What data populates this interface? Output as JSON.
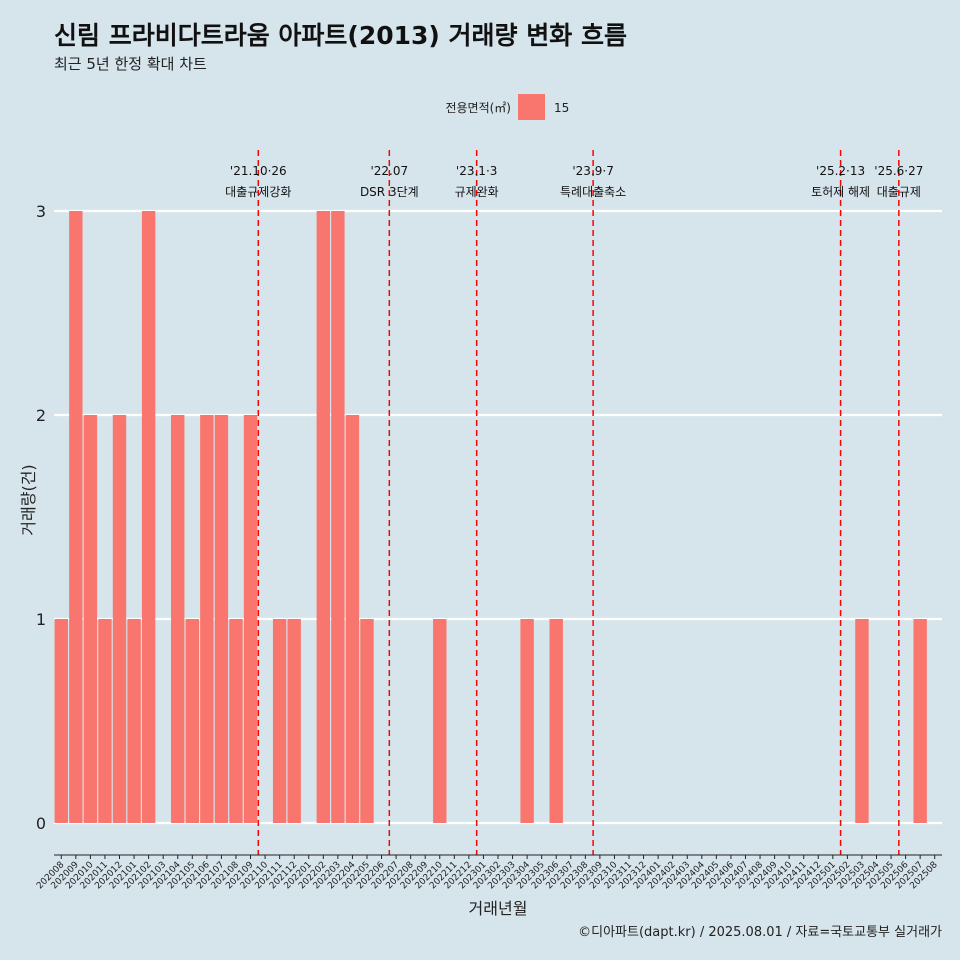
{
  "chart_data": {
    "type": "bar",
    "title": "신림 프라비다트라움 아파트(2013) 거래량 변화 흐름",
    "subtitle": "최근 5년 한정 확대 차트",
    "xlabel": "거래년월",
    "ylabel": "거래량(건)",
    "ylim": [
      0,
      3
    ],
    "y_ticks": [
      "0",
      "1",
      "2",
      "3"
    ],
    "legend": {
      "title": "전용면적(㎡)",
      "items": [
        {
          "name": "15",
          "color": "#f8766d"
        }
      ],
      "position": "top"
    },
    "categories": [
      "202008",
      "202009",
      "202010",
      "202011",
      "202012",
      "202101",
      "202102",
      "202103",
      "202104",
      "202105",
      "202106",
      "202107",
      "202108",
      "202109",
      "202110",
      "202111",
      "202112",
      "202201",
      "202202",
      "202203",
      "202204",
      "202205",
      "202206",
      "202207",
      "202208",
      "202209",
      "202210",
      "202211",
      "202212",
      "202301",
      "202302",
      "202303",
      "202304",
      "202305",
      "202306",
      "202307",
      "202308",
      "202309",
      "202310",
      "202311",
      "202312",
      "202401",
      "202402",
      "202403",
      "202404",
      "202405",
      "202406",
      "202407",
      "202408",
      "202409",
      "202410",
      "202411",
      "202412",
      "202501",
      "202502",
      "202503",
      "202504",
      "202505",
      "202506",
      "202507",
      "202508"
    ],
    "series": [
      {
        "name": "15",
        "color": "#f8766d",
        "values": [
          1,
          3,
          2,
          1,
          2,
          1,
          3,
          0,
          2,
          1,
          2,
          2,
          1,
          2,
          0,
          1,
          1,
          0,
          3,
          3,
          2,
          1,
          0,
          0,
          0,
          0,
          1,
          0,
          0,
          0,
          0,
          0,
          1,
          0,
          1,
          0,
          0,
          0,
          0,
          0,
          0,
          0,
          0,
          0,
          0,
          0,
          0,
          0,
          0,
          0,
          0,
          0,
          0,
          0,
          0,
          1,
          0,
          0,
          0,
          1,
          0
        ]
      }
    ],
    "annotations": [
      {
        "at": "202110",
        "line1": "'21.10·26",
        "line2": "대출규제강화"
      },
      {
        "at": "202207",
        "line1": "'22.07",
        "line2": "DSR 3단계"
      },
      {
        "at": "202301",
        "line1": "'23.1·3",
        "line2": "규제완화"
      },
      {
        "at": "202309",
        "line1": "'23.9·7",
        "line2": "특례대출축소"
      },
      {
        "at": "202502",
        "line1": "'25.2·13",
        "line2": "토허제 해제"
      },
      {
        "at": "202506",
        "line1": "'25.6·27",
        "line2": "대출규제"
      }
    ],
    "annotation_color": "#ff0000",
    "grid": true
  },
  "caption": "©디아파트(dapt.kr) / 2025.08.01 / 자료=국토교통부 실거래가"
}
